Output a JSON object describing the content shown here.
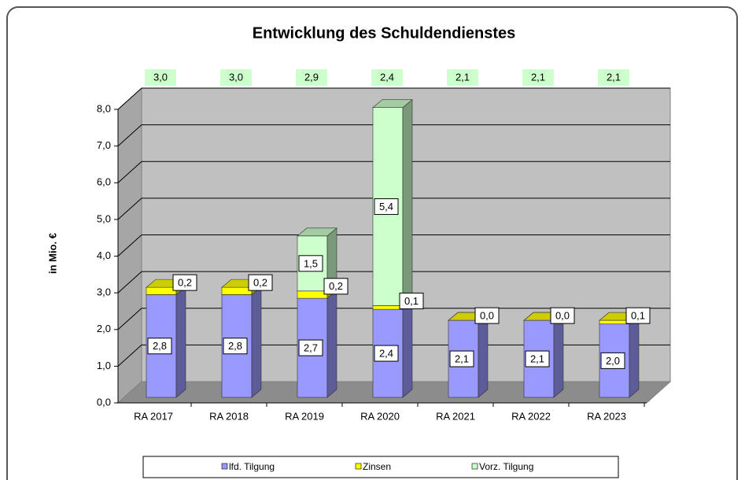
{
  "chart_data": {
    "type": "bar3d_stacked",
    "title": "Entwicklung des Schuldendienstes",
    "y_label": "in Mio. €",
    "categories": [
      "RA 2017",
      "RA 2018",
      "RA 2019",
      "RA 2020",
      "RA 2021",
      "RA 2022",
      "RA 2023"
    ],
    "series": [
      {
        "name": "lfd. Tilgung",
        "color": "#9999ff",
        "values": [
          2.8,
          2.8,
          2.7,
          2.4,
          2.1,
          2.1,
          2.0
        ],
        "value_labels": [
          "2,8",
          "2,8",
          "2,7",
          "2,4",
          "2,1",
          "2,1",
          "2,0"
        ]
      },
      {
        "name": "Zinsen",
        "color": "#ffff00",
        "values": [
          0.2,
          0.2,
          0.2,
          0.1,
          0.0,
          0.0,
          0.1
        ],
        "value_labels": [
          "0,2",
          "0,2",
          "0,2",
          "0,1",
          "0,0",
          "0,0",
          "0,1"
        ]
      },
      {
        "name": "Vorz. Tilgung",
        "color": "#ccffcc",
        "values": [
          null,
          null,
          1.5,
          5.4,
          null,
          null,
          null
        ],
        "value_labels": [
          null,
          null,
          "1,5",
          "5,4",
          null,
          null,
          null
        ]
      }
    ],
    "totals": {
      "color": "#ccffcc",
      "values": [
        3.0,
        3.0,
        2.9,
        2.4,
        2.1,
        2.1,
        2.1
      ],
      "value_labels": [
        "3,0",
        "3,0",
        "2,9",
        "2,4",
        "2,1",
        "2,1",
        "2,1"
      ]
    },
    "ylim": [
      0,
      8
    ],
    "yticks": [
      {
        "value": 0,
        "label": "0,0"
      },
      {
        "value": 1,
        "label": "1,0"
      },
      {
        "value": 2,
        "label": "2,0"
      },
      {
        "value": 3,
        "label": "3,0"
      },
      {
        "value": 4,
        "label": "4,0"
      },
      {
        "value": 5,
        "label": "5,0"
      },
      {
        "value": 6,
        "label": "6,0"
      },
      {
        "value": 7,
        "label": "7,0"
      },
      {
        "value": 8,
        "label": "8,0"
      }
    ],
    "grid": true,
    "legend": "bottom"
  }
}
